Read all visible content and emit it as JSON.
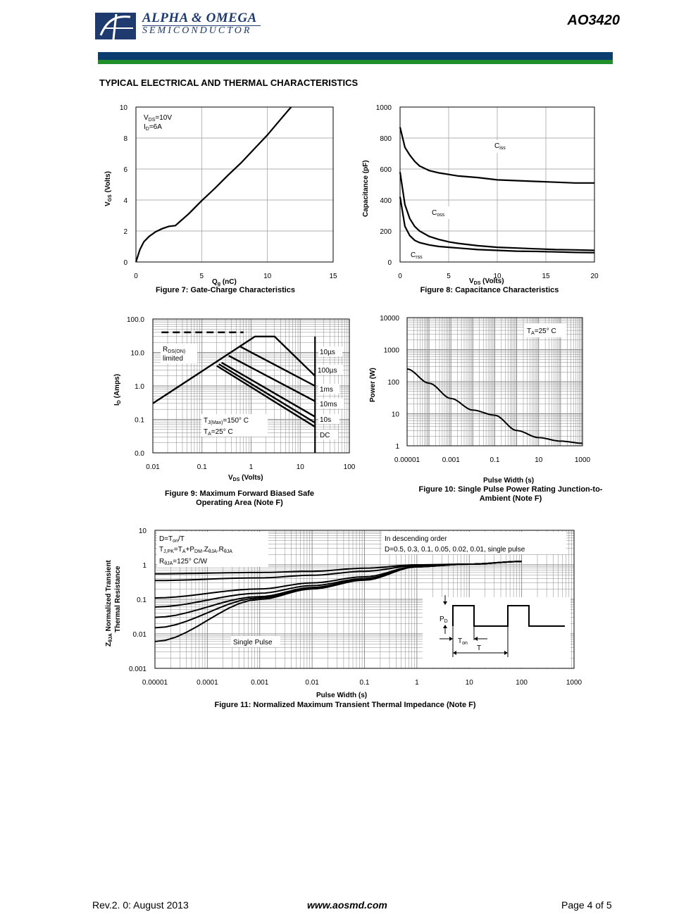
{
  "header": {
    "company_line1": "ALPHA & OMEGA",
    "company_line2": "SEMICONDUCTOR",
    "part_number": "AO3420",
    "colors": {
      "blue_bar": "#0b3d6e",
      "green_bar": "#1f8f2a",
      "logo": "#1f3a6e"
    }
  },
  "section_title": "TYPICAL ELECTRICAL AND THERMAL CHARACTERISTICS",
  "chart_data": [
    {
      "id": "fig7",
      "type": "line",
      "caption": "Figure 7: Gate-Charge Characteristics",
      "xlabel": "Qg (nC)",
      "ylabel": "VGS (Volts)",
      "xlim": [
        0,
        15
      ],
      "ylim": [
        0,
        10
      ],
      "xticks": [
        "0",
        "5",
        "10",
        "15"
      ],
      "yticks": [
        "0",
        "2",
        "4",
        "6",
        "8",
        "10"
      ],
      "annotations": [
        "VDS=10V",
        "ID=6A"
      ],
      "series": [
        {
          "x": [
            0,
            0.3,
            0.6,
            1.0,
            1.5,
            2.0,
            2.5,
            3.0,
            4.0,
            5.0,
            6.0,
            7.0,
            8.0,
            9.0,
            10.0,
            11.0,
            11.8
          ],
          "y": [
            0,
            0.8,
            1.3,
            1.65,
            1.95,
            2.15,
            2.3,
            2.35,
            3.1,
            3.95,
            4.75,
            5.6,
            6.4,
            7.3,
            8.2,
            9.2,
            10.0
          ]
        }
      ]
    },
    {
      "id": "fig8",
      "type": "line",
      "caption": "Figure 8: Capacitance Characteristics",
      "xlabel": "VDS (Volts)",
      "ylabel": "Capacitance (pF)",
      "xlim": [
        0,
        20
      ],
      "ylim": [
        0,
        1000
      ],
      "xticks": [
        "0",
        "5",
        "10",
        "15",
        "20"
      ],
      "yticks": [
        "0",
        "200",
        "400",
        "600",
        "800",
        "1000"
      ],
      "series": [
        {
          "name": "Ciss",
          "x": [
            0,
            0.5,
            1,
            1.5,
            2,
            3,
            4,
            5,
            6,
            8,
            10,
            12,
            14,
            16,
            18,
            20
          ],
          "y": [
            870,
            740,
            690,
            650,
            620,
            590,
            575,
            565,
            555,
            545,
            530,
            525,
            520,
            515,
            510,
            510
          ]
        },
        {
          "name": "Coss",
          "x": [
            0,
            0.5,
            1,
            1.5,
            2,
            3,
            4,
            5,
            6,
            8,
            10,
            12,
            14,
            16,
            18,
            20
          ],
          "y": [
            580,
            370,
            280,
            230,
            200,
            165,
            145,
            130,
            120,
            105,
            95,
            90,
            85,
            80,
            78,
            75
          ]
        },
        {
          "name": "Crss",
          "x": [
            0,
            0.5,
            1,
            1.5,
            2,
            3,
            4,
            5,
            6,
            8,
            10,
            12,
            14,
            16,
            18,
            20
          ],
          "y": [
            420,
            230,
            170,
            140,
            125,
            110,
            100,
            95,
            90,
            80,
            75,
            70,
            68,
            65,
            62,
            60
          ]
        }
      ]
    },
    {
      "id": "fig9",
      "type": "line",
      "caption_line1": "Figure 9: Maximum Forward Biased Safe",
      "caption_line2": "Operating Area (Note F)",
      "xlabel": "VDS (Volts)",
      "ylabel": "ID (Amps)",
      "x_scale": "log",
      "y_scale": "log",
      "xticks": [
        "0.01",
        "0.1",
        "1",
        "10",
        "100"
      ],
      "yticks": [
        "0.0",
        "0.1",
        "1.0",
        "10.0",
        "100.0"
      ],
      "annotations": [
        "RDS(ON) limited",
        "TJ(Max)=150° C",
        "TA=25° C",
        "10µs",
        "100µs",
        "1ms",
        "10ms",
        "10s",
        "DC"
      ],
      "series": [
        {
          "name": "10µs",
          "x": [
            0.01,
            1.2,
            3,
            20
          ],
          "y": [
            0.3,
            30,
            30,
            2
          ]
        },
        {
          "name": "100µs",
          "x": [
            0.6,
            20
          ],
          "y": [
            15,
            1
          ]
        },
        {
          "name": "1ms",
          "x": [
            0.35,
            20
          ],
          "y": [
            8,
            0.35
          ]
        },
        {
          "name": "10ms",
          "x": [
            0.25,
            20
          ],
          "y": [
            5,
            0.12
          ]
        },
        {
          "name": "10s",
          "x": [
            0.22,
            20
          ],
          "y": [
            4.5,
            0.08
          ]
        },
        {
          "name": "DC",
          "x": [
            0.2,
            20
          ],
          "y": [
            4,
            0.06
          ]
        }
      ]
    },
    {
      "id": "fig10",
      "type": "line",
      "caption_line1": "Figure 10: Single Pulse Power Rating Junction-to-",
      "caption_line2": "Ambient (Note F)",
      "xlabel": "Pulse Width (s)",
      "ylabel": "Power (W)",
      "x_scale": "log",
      "y_scale": "log",
      "xticks": [
        "0.00001",
        "0.001",
        "0.1",
        "10",
        "1000"
      ],
      "yticks": [
        "1",
        "10",
        "100",
        "1000",
        "10000"
      ],
      "annotations": [
        "TA=25° C"
      ],
      "series": [
        {
          "x": [
            1e-05,
            0.0001,
            0.001,
            0.01,
            0.1,
            1,
            10,
            100,
            1000
          ],
          "y": [
            250,
            90,
            30,
            13,
            9,
            3,
            1.8,
            1.4,
            1.2
          ]
        }
      ]
    },
    {
      "id": "fig11",
      "type": "line",
      "caption": "Figure 11: Normalized Maximum Transient Thermal Impedance (Note F)",
      "xlabel": "Pulse Width (s)",
      "ylabel_line1": "ZθJA Normalized Transient",
      "ylabel_line2": "Thermal Resistance",
      "x_scale": "log",
      "y_scale": "log",
      "xticks": [
        "0.00001",
        "0.0001",
        "0.001",
        "0.01",
        "0.1",
        "1",
        "10",
        "100",
        "1000"
      ],
      "yticks": [
        "0.001",
        "0.01",
        "0.1",
        "1",
        "10"
      ],
      "annotations": {
        "left_box": [
          "D=Ton/T",
          "TJ,PK=TA+PDM.ZθJA.RθJA",
          "RθJA=125° C/W"
        ],
        "right_box": [
          "In descending order",
          "D=0.5, 0.3, 0.1, 0.05, 0.02, 0.01, single pulse"
        ],
        "single_pulse": "Single Pulse",
        "pulse_diagram": [
          "PD",
          "Ton",
          "T"
        ]
      },
      "series": [
        {
          "name": "D=0.5",
          "x": [
            1e-05,
            0.001,
            0.01,
            0.1,
            1,
            10,
            100
          ],
          "y": [
            0.55,
            0.6,
            0.65,
            0.8,
            1.0,
            1.05,
            1.25
          ]
        },
        {
          "name": "D=0.3",
          "x": [
            1e-05,
            0.001,
            0.01,
            0.1,
            1,
            10,
            100
          ],
          "y": [
            0.35,
            0.42,
            0.5,
            0.65,
            0.95,
            1.05,
            1.25
          ]
        },
        {
          "name": "D=0.1",
          "x": [
            1e-05,
            0.001,
            0.01,
            0.1,
            1,
            10,
            100
          ],
          "y": [
            0.11,
            0.2,
            0.3,
            0.45,
            0.9,
            1.05,
            1.25
          ]
        },
        {
          "name": "D=0.05",
          "x": [
            1e-05,
            0.001,
            0.01,
            0.1,
            1,
            10,
            100
          ],
          "y": [
            0.06,
            0.15,
            0.25,
            0.4,
            0.9,
            1.05,
            1.25
          ]
        },
        {
          "name": "D=0.02",
          "x": [
            1e-05,
            0.001,
            0.01,
            0.1,
            1,
            10,
            100
          ],
          "y": [
            0.03,
            0.12,
            0.22,
            0.38,
            0.88,
            1.05,
            1.25
          ]
        },
        {
          "name": "D=0.01",
          "x": [
            1e-05,
            0.001,
            0.01,
            0.1,
            1,
            10,
            100
          ],
          "y": [
            0.015,
            0.11,
            0.21,
            0.37,
            0.88,
            1.05,
            1.25
          ]
        },
        {
          "name": "single pulse",
          "x": [
            1e-05,
            0.001,
            0.01,
            0.1,
            1,
            10,
            100
          ],
          "y": [
            0.006,
            0.1,
            0.2,
            0.36,
            0.88,
            1.05,
            1.25
          ]
        }
      ]
    }
  ],
  "footer": {
    "revision": "Rev.2. 0: August 2013",
    "website": "www.aosmd.com",
    "page": "Page 4 of 5"
  }
}
